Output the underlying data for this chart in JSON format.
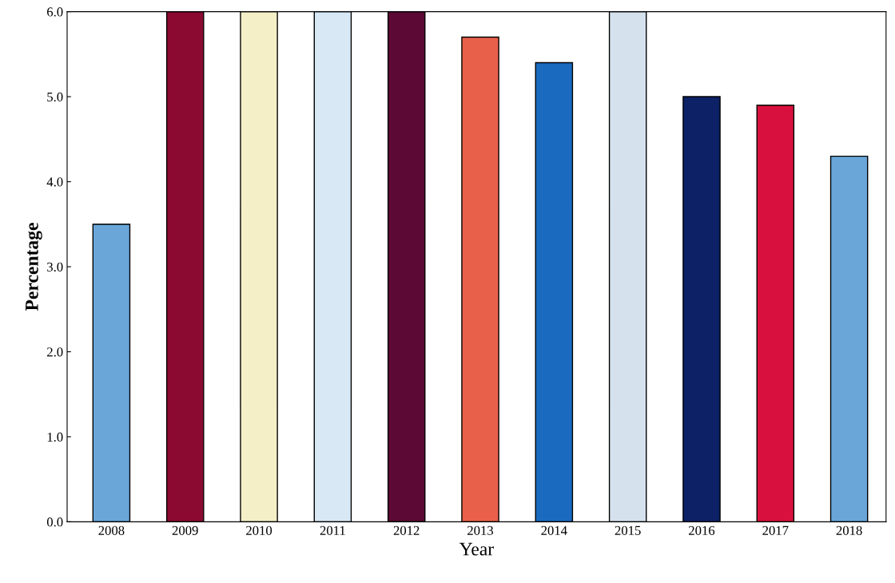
{
  "chart_data": {
    "type": "bar",
    "xlabel": "Year",
    "ylabel": "Percentage",
    "categories": [
      "2008",
      "2009",
      "2010",
      "2011",
      "2012",
      "2013",
      "2014",
      "2015",
      "2016",
      "2017",
      "2018"
    ],
    "values": [
      3.5,
      6.0,
      6.0,
      6.0,
      6.0,
      5.7,
      5.4,
      6.0,
      5.0,
      4.9,
      4.3
    ],
    "colors": [
      "#6aa6d8",
      "#8b0a32",
      "#f5efc8",
      "#d8e8f5",
      "#5c0a35",
      "#e8604a",
      "#1a6bbf",
      "#d5e2ee",
      "#0c2166",
      "#d8103e",
      "#6aa6d8"
    ],
    "ylim": [
      0,
      6
    ],
    "yticks": [
      {
        "value": 0,
        "label": "0.0"
      },
      {
        "value": 1,
        "label": "1.0"
      },
      {
        "value": 2,
        "label": "2.0"
      },
      {
        "value": 3,
        "label": "3.0"
      },
      {
        "value": 4,
        "label": "4.0"
      },
      {
        "value": 5,
        "label": "5.0"
      },
      {
        "value": 6,
        "label": "6.0"
      }
    ],
    "grid": false
  }
}
